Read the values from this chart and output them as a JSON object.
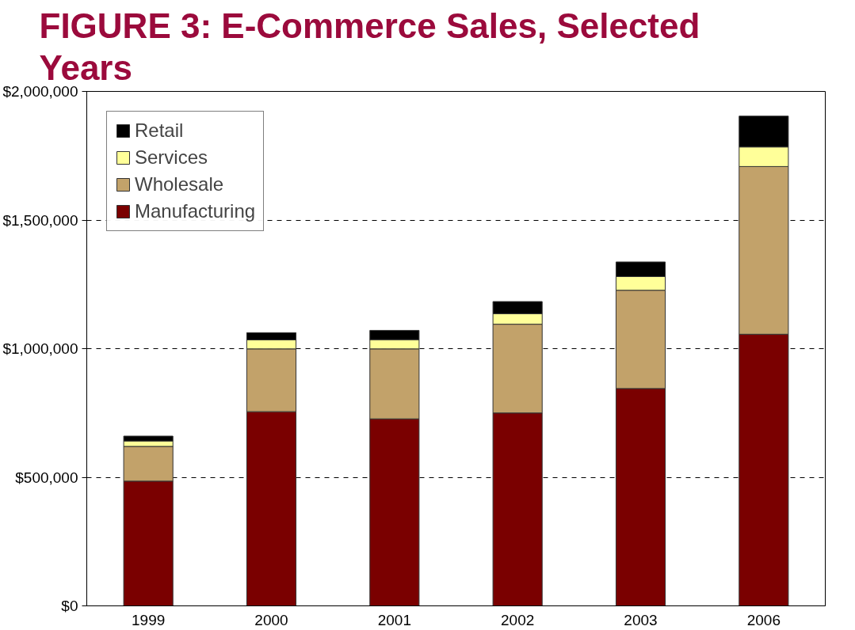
{
  "chart_data": {
    "type": "bar",
    "title": "FIGURE 3: E-Commerce Sales, Selected Years",
    "stacked": true,
    "categories": [
      "1999",
      "2000",
      "2001",
      "2002",
      "2003",
      "2006"
    ],
    "series": [
      {
        "name": "Manufacturing",
        "color": "#7a0000",
        "values": [
          485000,
          755000,
          727000,
          750000,
          845000,
          1056000
        ]
      },
      {
        "name": "Wholesale",
        "color": "#c2a26a",
        "values": [
          135000,
          244000,
          272000,
          345000,
          382000,
          652000
        ]
      },
      {
        "name": "Services",
        "color": "#ffff99",
        "values": [
          21000,
          35000,
          36000,
          41000,
          53000,
          76000
        ]
      },
      {
        "name": "Retail",
        "color": "#000000",
        "values": [
          19000,
          28000,
          36000,
          47000,
          57000,
          120000
        ]
      }
    ],
    "ylim": [
      0,
      2000000
    ],
    "yticks": [
      {
        "value": 0,
        "label": "$0"
      },
      {
        "value": 500000,
        "label": "$500,000"
      },
      {
        "value": 1000000,
        "label": "$1,000,000"
      },
      {
        "value": 1500000,
        "label": "$1,500,000"
      },
      {
        "value": 2000000,
        "label": "$2,000,000"
      }
    ],
    "grid": "y",
    "legend": "top left"
  }
}
